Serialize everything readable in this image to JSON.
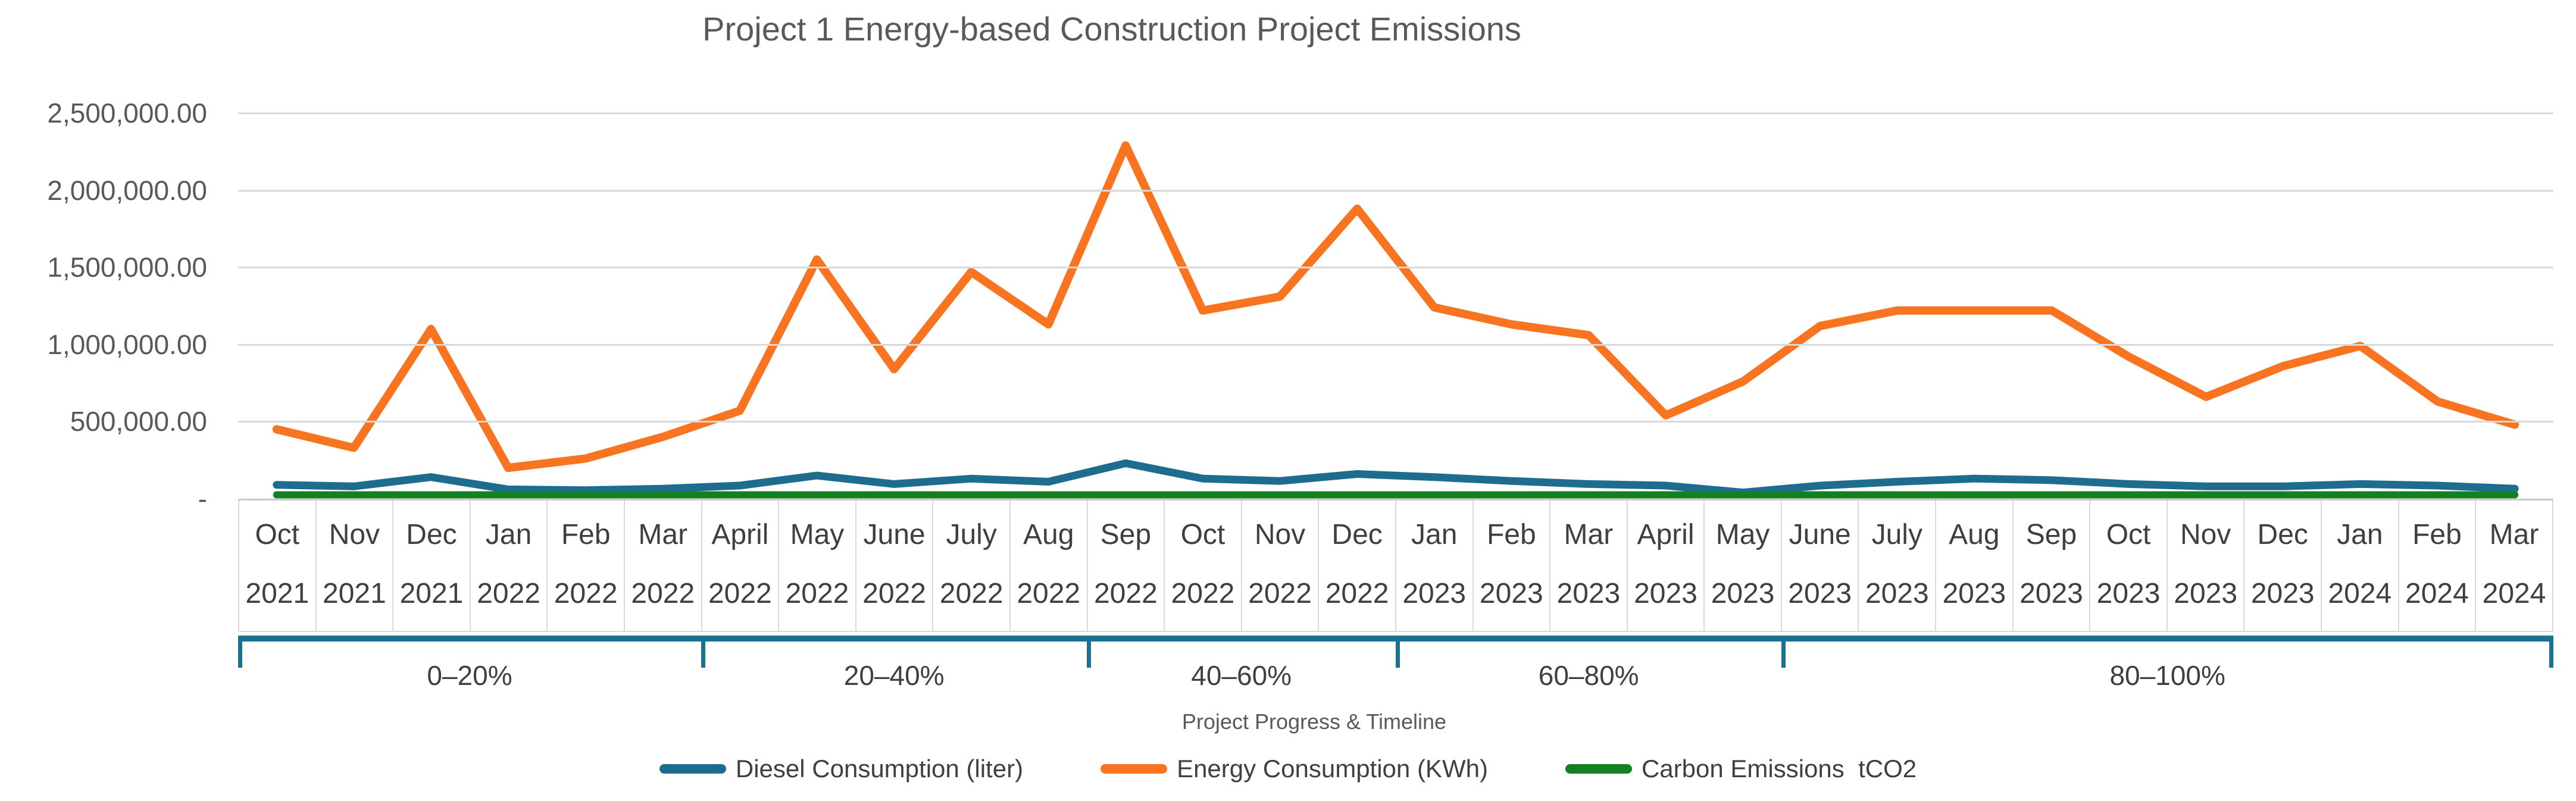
{
  "chart_data": {
    "type": "line",
    "title": "Project 1 Energy-based Construction Project Emissions",
    "x_axis_title": "Project Progress & Timeline",
    "ylim": [
      0,
      2500000
    ],
    "grid": true,
    "legend_position": "bottom",
    "y_ticks": [
      {
        "value": 2500000,
        "label": "2,500,000.00"
      },
      {
        "value": 2000000,
        "label": "2,000,000.00"
      },
      {
        "value": 1500000,
        "label": "1,500,000.00"
      },
      {
        "value": 1000000,
        "label": "1,000,000.00"
      },
      {
        "value": 500000,
        "label": "500,000.00"
      },
      {
        "value": 0,
        "label": "-"
      }
    ],
    "categories": [
      {
        "month": "Oct",
        "year": "2021"
      },
      {
        "month": "Nov",
        "year": "2021"
      },
      {
        "month": "Dec",
        "year": "2021"
      },
      {
        "month": "Jan",
        "year": "2022"
      },
      {
        "month": "Feb",
        "year": "2022"
      },
      {
        "month": "Mar",
        "year": "2022"
      },
      {
        "month": "April",
        "year": "2022"
      },
      {
        "month": "May",
        "year": "2022"
      },
      {
        "month": "June",
        "year": "2022"
      },
      {
        "month": "July",
        "year": "2022"
      },
      {
        "month": "Aug",
        "year": "2022"
      },
      {
        "month": "Sep",
        "year": "2022"
      },
      {
        "month": "Oct",
        "year": "2022"
      },
      {
        "month": "Nov",
        "year": "2022"
      },
      {
        "month": "Dec",
        "year": "2022"
      },
      {
        "month": "Jan",
        "year": "2023"
      },
      {
        "month": "Feb",
        "year": "2023"
      },
      {
        "month": "Mar",
        "year": "2023"
      },
      {
        "month": "April",
        "year": "2023"
      },
      {
        "month": "May",
        "year": "2023"
      },
      {
        "month": "June",
        "year": "2023"
      },
      {
        "month": "July",
        "year": "2023"
      },
      {
        "month": "Aug",
        "year": "2023"
      },
      {
        "month": "Sep",
        "year": "2023"
      },
      {
        "month": "Oct",
        "year": "2023"
      },
      {
        "month": "Nov",
        "year": "2023"
      },
      {
        "month": "Dec",
        "year": "2023"
      },
      {
        "month": "Jan",
        "year": "2024"
      },
      {
        "month": "Feb",
        "year": "2024"
      },
      {
        "month": "Mar",
        "year": "2024"
      }
    ],
    "series": [
      {
        "name": "Diesel Consumption (liter)",
        "color": "#1e6c8e",
        "values": [
          90000,
          80000,
          140000,
          60000,
          55000,
          65000,
          85000,
          150000,
          95000,
          130000,
          110000,
          230000,
          130000,
          115000,
          160000,
          140000,
          115000,
          95000,
          85000,
          40000,
          85000,
          110000,
          130000,
          120000,
          95000,
          80000,
          80000,
          95000,
          85000,
          65000
        ]
      },
      {
        "name": "Energy Consumption (KWh)",
        "color": "#f87420",
        "values": [
          450000,
          330000,
          1100000,
          200000,
          260000,
          400000,
          570000,
          1550000,
          840000,
          1470000,
          1130000,
          2290000,
          1220000,
          1310000,
          1880000,
          1240000,
          1130000,
          1060000,
          540000,
          760000,
          1120000,
          1220000,
          1220000,
          1220000,
          920000,
          660000,
          860000,
          990000,
          630000,
          480000
        ]
      },
      {
        "name": "Carbon Emissions  tCO2",
        "color": "#138024",
        "values": [
          25000,
          25000,
          25000,
          25000,
          25000,
          25000,
          25000,
          25000,
          25000,
          25000,
          25000,
          25000,
          25000,
          25000,
          25000,
          25000,
          25000,
          25000,
          25000,
          25000,
          25000,
          25000,
          25000,
          25000,
          25000,
          25000,
          25000,
          25000,
          25000,
          25000
        ]
      }
    ],
    "progress_segments": [
      {
        "label": "0–20%",
        "months": 6
      },
      {
        "label": "20–40%",
        "months": 5
      },
      {
        "label": "40–60%",
        "months": 4
      },
      {
        "label": "60–80%",
        "months": 5
      },
      {
        "label": "80–100%",
        "months": 10
      }
    ]
  }
}
